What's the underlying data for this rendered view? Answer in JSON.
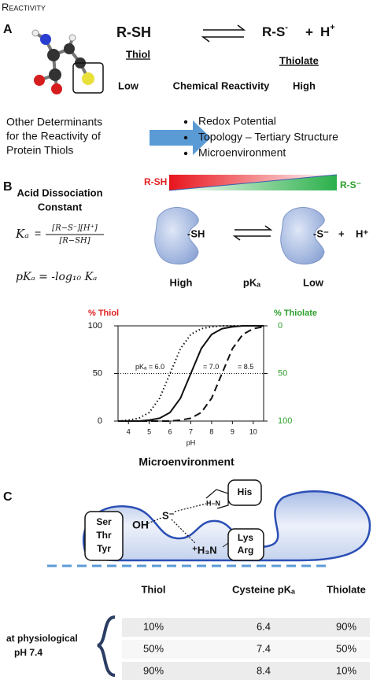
{
  "header": {
    "title": "Reactivity"
  },
  "panel_a": {
    "label": "A",
    "reactant": "R-SH",
    "reactant_name": "Thiol",
    "product": "R-S",
    "product_charge": "-",
    "plus": "+",
    "proton": "H",
    "proton_charge": "+",
    "product_name": "Thiolate",
    "scale_low": "Low",
    "scale_title": "Chemical Reactivity",
    "scale_high": "High"
  },
  "determinants": {
    "lead": [
      "Other Determinants",
      "for the Reactivity of",
      "Protein Thiols"
    ],
    "bullets": [
      "Redox Potential",
      "Topology – Tertiary Structure",
      "Microenvironment"
    ]
  },
  "panel_b": {
    "label": "B",
    "title": [
      "Acid Dissociation",
      "Constant"
    ],
    "ka_symbol": "Kₐ",
    "equals": "=",
    "ka_numerator": "[R−S⁻][H⁺]",
    "ka_denominator": "[R−SH]",
    "pka_formula": "pKₐ = -log₁₀ Kₐ",
    "gradient_left": "R-SH",
    "gradient_right": "R-S⁻",
    "protein_thiol": "-SH",
    "protein_thiolate": "-S⁻",
    "plus": "+",
    "proton": "H⁺",
    "high": "High",
    "pka": "pKₐ",
    "low": "Low",
    "chart_caption": "Microenvironment"
  },
  "chart_data": {
    "type": "line",
    "ylabel": "% Thiol",
    "y2label": "% Thiolate",
    "xlabel": "pH",
    "x": [
      3.5,
      4,
      4.5,
      5,
      5.5,
      6,
      6.5,
      7,
      7.5,
      8,
      8.5,
      9,
      9.5,
      10,
      10.5
    ],
    "series": [
      {
        "name": "pKₐ = 6.0",
        "dash": "dotted",
        "color": "#111111",
        "values": [
          0,
          1,
          3,
          9,
          24,
          50,
          76,
          91,
          97,
          99,
          100,
          100,
          100,
          100,
          100
        ]
      },
      {
        "name": "= 7.0",
        "dash": "solid",
        "color": "#111111",
        "values": [
          0,
          0,
          0,
          1,
          3,
          9,
          24,
          50,
          76,
          91,
          97,
          99,
          100,
          100,
          100
        ]
      },
      {
        "name": "= 8.5",
        "dash": "dashed",
        "color": "#111111",
        "values": [
          0,
          0,
          0,
          0,
          0,
          0,
          1,
          3,
          9,
          24,
          50,
          76,
          91,
          97,
          99
        ]
      }
    ],
    "xlim": [
      3.5,
      10.5
    ],
    "xticks": [
      4,
      5,
      6,
      7,
      8,
      9,
      10
    ],
    "ylim": [
      0,
      100
    ],
    "yticks": [
      0,
      50,
      100
    ],
    "ylabel_color": "#e02020",
    "y2lim": [
      100,
      0
    ],
    "y2ticks": [
      0,
      50,
      100
    ],
    "y2label_color": "#2ca02c",
    "hline": 50
  },
  "panel_c": {
    "label": "C",
    "residues_left": [
      "Ser",
      "Thr",
      "Tyr"
    ],
    "hydroxyl": "OH",
    "thiolate": "S⁻",
    "amine": "⁺H₃N",
    "residues_right": [
      "Lys",
      "Arg"
    ],
    "histidine": "His",
    "imidazole": "H–N"
  },
  "table": {
    "columns": [
      "Thiol",
      "Cysteine pKₐ",
      "Thiolate"
    ],
    "row_label": [
      "at physiological",
      "pH 7.4"
    ],
    "rows": [
      [
        "10%",
        "6.4",
        "90%"
      ],
      [
        "50%",
        "7.4",
        "50%"
      ],
      [
        "90%",
        "8.4",
        "10%"
      ]
    ]
  }
}
